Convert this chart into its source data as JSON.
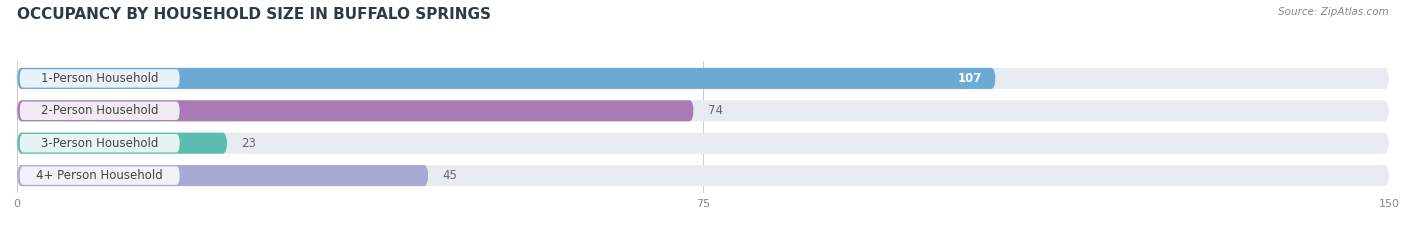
{
  "title": "OCCUPANCY BY HOUSEHOLD SIZE IN BUFFALO SPRINGS",
  "source": "Source: ZipAtlas.com",
  "categories": [
    "1-Person Household",
    "2-Person Household",
    "3-Person Household",
    "4+ Person Household"
  ],
  "values": [
    107,
    74,
    23,
    45
  ],
  "bar_colors": [
    "#6aaad4",
    "#a97bb5",
    "#5bbcb0",
    "#a9a9d4"
  ],
  "bar_bg_color": "#e8ecf0",
  "xlim": [
    0,
    150
  ],
  "xticks": [
    0,
    75,
    150
  ],
  "title_fontsize": 11,
  "label_fontsize": 8.5,
  "value_fontsize": 8.5,
  "background_color": "#ffffff",
  "bar_height": 0.65,
  "label_color": "#444444",
  "value_color_inside": "#ffffff",
  "value_color_outside": "#666666"
}
